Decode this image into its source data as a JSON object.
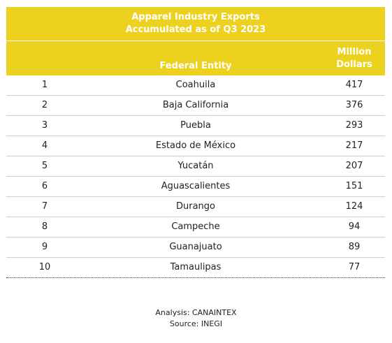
{
  "chart_data": {
    "type": "table",
    "title_line1": "Apparel Industry Exports",
    "title_line2": "Accumulated as of Q3 2023",
    "columns": [
      "",
      "Federal Entity",
      "Million Dollars"
    ],
    "value_header_line1": "Million",
    "value_header_line2": "Dollars",
    "rows": [
      {
        "rank": "1",
        "entity": "Coahuila",
        "value": 417
      },
      {
        "rank": "2",
        "entity": "Baja California",
        "value": 376
      },
      {
        "rank": "3",
        "entity": "Puebla",
        "value": 293
      },
      {
        "rank": "4",
        "entity": "Estado de México",
        "value": 217
      },
      {
        "rank": "5",
        "entity": "Yucatán",
        "value": 207
      },
      {
        "rank": "6",
        "entity": "Aguascalientes",
        "value": 151
      },
      {
        "rank": "7",
        "entity": "Durango",
        "value": 124
      },
      {
        "rank": "8",
        "entity": "Campeche",
        "value": 94
      },
      {
        "rank": "9",
        "entity": "Guanajuato",
        "value": 89
      },
      {
        "rank": "10",
        "entity": "Tamaulipas",
        "value": 77
      }
    ],
    "analysis": "Analysis: CANAINTEX",
    "source": "Source: INEGI"
  },
  "colors": {
    "header_background": "#EDD11F",
    "header_text": "#FFFFFF"
  }
}
